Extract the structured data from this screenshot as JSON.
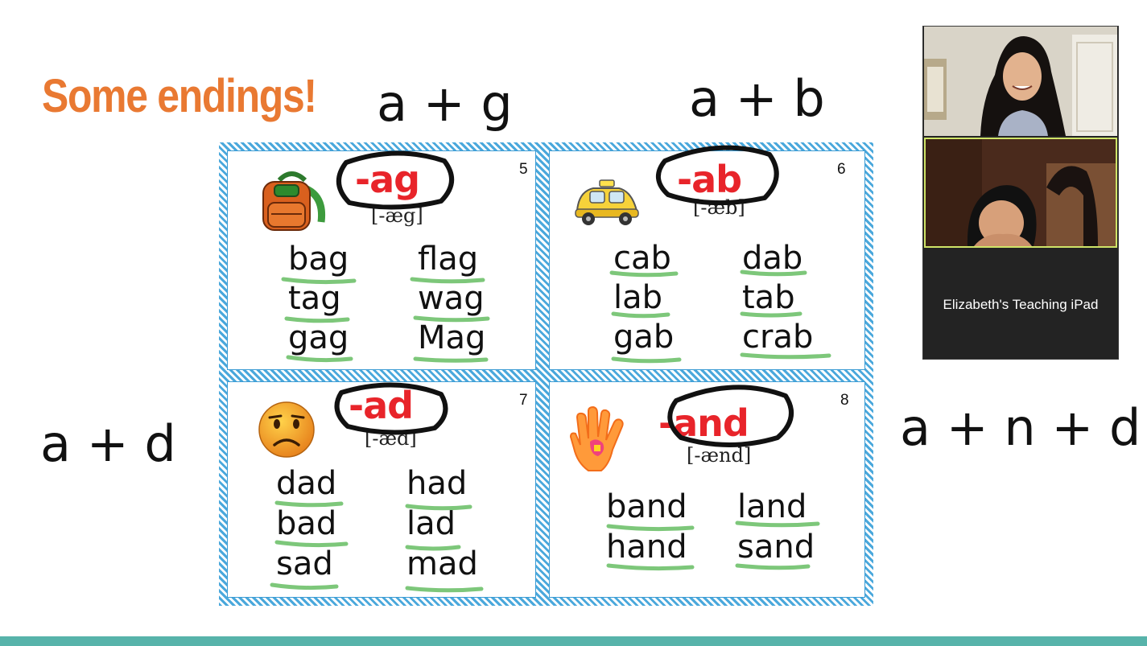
{
  "slide": {
    "title": "Some endings!"
  },
  "cards": [
    {
      "number": "5",
      "ending": "-ag",
      "ipa": "[-æg]",
      "words": [
        "bag",
        "flag",
        "tag",
        "wag",
        "gag",
        "Mag"
      ]
    },
    {
      "number": "6",
      "ending": "-ab",
      "ipa": "[-æb]",
      "words": [
        "cab",
        "dab",
        "lab",
        "tab",
        "gab",
        "crab"
      ]
    },
    {
      "number": "7",
      "ending": "-ad",
      "ipa": "[-æd]",
      "words": [
        "dad",
        "had",
        "bad",
        "lad",
        "sad",
        "mad"
      ]
    },
    {
      "number": "8",
      "ending": "-and",
      "ipa": "[-ænd]",
      "words": [
        "band",
        "land",
        "hand",
        "sand"
      ]
    }
  ],
  "annotations": {
    "ag": "a + g",
    "ab": "a + b",
    "ad": "a + d",
    "and": "a + n + d"
  },
  "video": {
    "participant_name": "Elizabeth's Teaching iPad"
  },
  "colors": {
    "title": "#e97932",
    "ending": "#e8242a",
    "underline": "#7dc77a",
    "card_border": "#4aa8dc",
    "footer": "#57b3aa"
  }
}
